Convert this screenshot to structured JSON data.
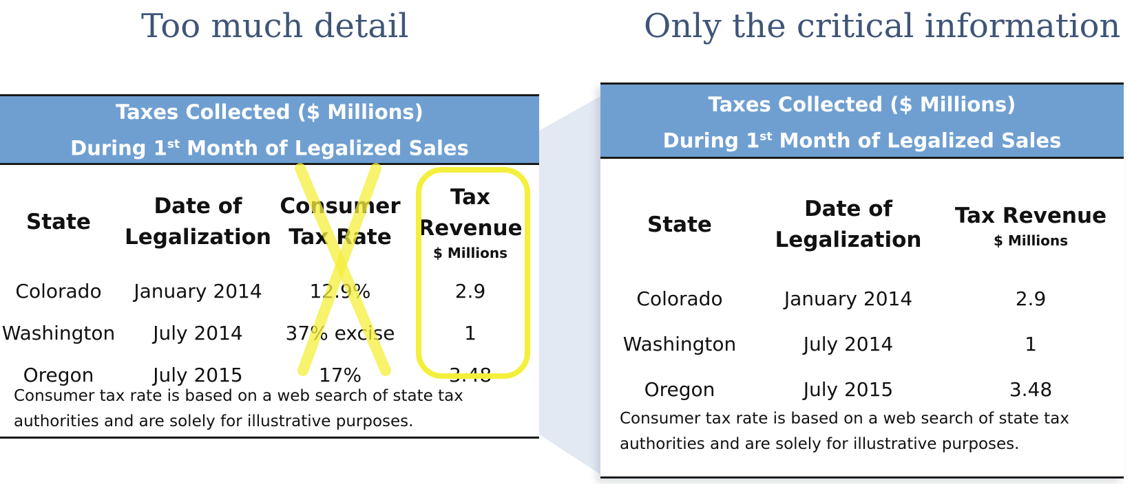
{
  "left": {
    "heading": "Too much detail",
    "title_line1": "Taxes Collected ($ Millions)",
    "title_line2_pre": "During 1",
    "title_line2_sup": "st",
    "title_line2_post": " Month of Legalized Sales",
    "columns": {
      "state": "State",
      "date_l1": "Date of",
      "date_l2": "Legalization",
      "rate_l1": "Consumer",
      "rate_l2": "Tax Rate",
      "rev_l1": "Tax",
      "rev_l2": "Revenue",
      "rev_sub": "$ Millions"
    },
    "rows": [
      {
        "state": "Colorado",
        "date": "January 2014",
        "rate": "12.9%",
        "revenue": "2.9"
      },
      {
        "state": "Washington",
        "date": "July 2014",
        "rate": "37% excise",
        "revenue": "1"
      },
      {
        "state": "Oregon",
        "date": "July 2015",
        "rate": "17%",
        "revenue": "3.48"
      }
    ],
    "note_l1": "Consumer tax rate is based on a web search of state tax",
    "note_l2": "authorities and are solely for illustrative purposes.",
    "highlight_color": "#f4ef3c"
  },
  "right": {
    "heading": "Only the critical information",
    "title_line1": "Taxes Collected ($ Millions)",
    "title_line2_pre": "During 1",
    "title_line2_sup": "st",
    "title_line2_post": " Month of Legalized Sales",
    "columns": {
      "state": "State",
      "date_l1": "Date of",
      "date_l2": "Legalization",
      "rev_l1": "Tax Revenue",
      "rev_sub": "$ Millions"
    },
    "rows": [
      {
        "state": "Colorado",
        "date": "January 2014",
        "revenue": "2.9"
      },
      {
        "state": "Washington",
        "date": "July 2014",
        "revenue": "1"
      },
      {
        "state": "Oregon",
        "date": "July 2015",
        "revenue": "3.48"
      }
    ],
    "note_l1": "Consumer tax rate is based on a web search of state tax",
    "note_l2": "authorities and are solely for illustrative purposes."
  },
  "colors": {
    "heading": "#3f5577",
    "band": "#6f9fd1",
    "wedge": "#e2e8f2"
  }
}
